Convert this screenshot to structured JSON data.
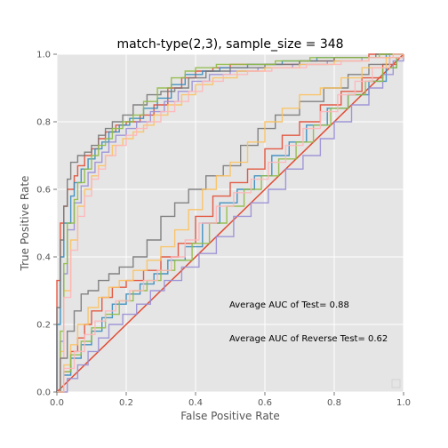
{
  "chart_data": {
    "type": "line",
    "title": "match-type(2,3), sample_size =  348",
    "xlabel": "False Positive Rate",
    "ylabel": "True Positive Rate",
    "xlim": [
      0,
      1
    ],
    "ylim": [
      0,
      1
    ],
    "xticks": [
      "0.0",
      "0.2",
      "0.4",
      "0.6",
      "0.8",
      "1.0"
    ],
    "yticks": [
      "0.0",
      "0.2",
      "0.4",
      "0.6",
      "0.8",
      "1.0"
    ],
    "grid": true,
    "background": "#e5e5e5",
    "annotations": [
      {
        "text": "Average AUC of Test= 0.88",
        "x": 0.5,
        "y": 0.26
      },
      {
        "text": "Average AUC of Reverse Test= 0.62",
        "x": 0.5,
        "y": 0.16
      }
    ],
    "diagonal": {
      "x": [
        0,
        1
      ],
      "y": [
        0,
        1
      ],
      "color": "#e24a33"
    },
    "series": [
      {
        "group": "test",
        "color": "#e24a33",
        "x": [
          0,
          0,
          0.01,
          0.02,
          0.03,
          0.05,
          0.06,
          0.08,
          0.1,
          0.12,
          0.14,
          0.17,
          0.2,
          0.24,
          0.28,
          0.32,
          0.36,
          0.4,
          0.45,
          0.5,
          0.6,
          0.7,
          0.8,
          0.9,
          1
        ],
        "y": [
          0,
          0.33,
          0.5,
          0.55,
          0.6,
          0.64,
          0.67,
          0.7,
          0.72,
          0.75,
          0.77,
          0.79,
          0.8,
          0.82,
          0.85,
          0.9,
          0.93,
          0.95,
          0.96,
          0.97,
          0.97,
          0.98,
          0.99,
          1,
          1
        ]
      },
      {
        "group": "test",
        "color": "#348abd",
        "x": [
          0,
          0,
          0.01,
          0.02,
          0.04,
          0.05,
          0.07,
          0.09,
          0.11,
          0.13,
          0.15,
          0.18,
          0.21,
          0.25,
          0.29,
          0.33,
          0.37,
          0.42,
          0.47,
          0.55,
          0.65,
          0.75,
          0.85,
          0.95,
          1
        ],
        "y": [
          0,
          0.2,
          0.4,
          0.5,
          0.58,
          0.62,
          0.66,
          0.69,
          0.72,
          0.74,
          0.77,
          0.79,
          0.81,
          0.84,
          0.87,
          0.91,
          0.94,
          0.95,
          0.96,
          0.97,
          0.98,
          0.99,
          0.99,
          1,
          1
        ]
      },
      {
        "group": "test",
        "color": "#988ed5",
        "x": [
          0,
          0.01,
          0.02,
          0.03,
          0.05,
          0.07,
          0.09,
          0.11,
          0.13,
          0.15,
          0.17,
          0.2,
          0.23,
          0.27,
          0.31,
          0.35,
          0.39,
          0.44,
          0.5,
          0.58,
          0.68,
          0.78,
          0.88,
          0.96,
          1
        ],
        "y": [
          0,
          0.15,
          0.35,
          0.48,
          0.56,
          0.61,
          0.65,
          0.68,
          0.71,
          0.74,
          0.76,
          0.78,
          0.8,
          0.83,
          0.86,
          0.89,
          0.92,
          0.94,
          0.95,
          0.96,
          0.97,
          0.98,
          0.99,
          1,
          1
        ]
      },
      {
        "group": "test",
        "color": "#777777",
        "x": [
          0,
          0,
          0.01,
          0.02,
          0.03,
          0.04,
          0.06,
          0.08,
          0.1,
          0.12,
          0.14,
          0.16,
          0.19,
          0.22,
          0.26,
          0.3,
          0.34,
          0.38,
          0.43,
          0.5,
          0.6,
          0.7,
          0.8,
          0.92,
          1
        ],
        "y": [
          0,
          0.25,
          0.45,
          0.55,
          0.63,
          0.68,
          0.7,
          0.71,
          0.73,
          0.76,
          0.78,
          0.8,
          0.82,
          0.85,
          0.88,
          0.89,
          0.9,
          0.93,
          0.95,
          0.96,
          0.97,
          0.98,
          0.99,
          1,
          1
        ]
      },
      {
        "group": "test",
        "color": "#fbc15e",
        "x": [
          0,
          0.01,
          0.02,
          0.04,
          0.06,
          0.08,
          0.1,
          0.12,
          0.14,
          0.16,
          0.19,
          0.22,
          0.25,
          0.28,
          0.32,
          0.36,
          0.4,
          0.45,
          0.52,
          0.6,
          0.7,
          0.8,
          0.9,
          0.97,
          1
        ],
        "y": [
          0,
          0.12,
          0.3,
          0.45,
          0.55,
          0.6,
          0.64,
          0.67,
          0.7,
          0.73,
          0.75,
          0.77,
          0.79,
          0.82,
          0.85,
          0.88,
          0.91,
          0.93,
          0.95,
          0.96,
          0.97,
          0.98,
          0.99,
          1,
          1
        ]
      },
      {
        "group": "test",
        "color": "#8eba42",
        "x": [
          0,
          0.01,
          0.02,
          0.03,
          0.05,
          0.06,
          0.08,
          0.1,
          0.12,
          0.14,
          0.16,
          0.19,
          0.22,
          0.25,
          0.29,
          0.33,
          0.37,
          0.4,
          0.46,
          0.53,
          0.63,
          0.73,
          0.83,
          0.93,
          1
        ],
        "y": [
          0,
          0.18,
          0.38,
          0.5,
          0.57,
          0.62,
          0.66,
          0.7,
          0.73,
          0.75,
          0.78,
          0.8,
          0.82,
          0.86,
          0.9,
          0.93,
          0.95,
          0.96,
          0.97,
          0.97,
          0.98,
          0.99,
          0.99,
          1,
          1
        ]
      },
      {
        "group": "test",
        "color": "#ffb5b8",
        "x": [
          0,
          0.01,
          0.02,
          0.04,
          0.06,
          0.08,
          0.1,
          0.12,
          0.14,
          0.17,
          0.2,
          0.23,
          0.26,
          0.3,
          0.34,
          0.38,
          0.42,
          0.48,
          0.55,
          0.62,
          0.72,
          0.82,
          0.9,
          0.97,
          1
        ],
        "y": [
          0,
          0.1,
          0.28,
          0.42,
          0.52,
          0.58,
          0.63,
          0.66,
          0.7,
          0.73,
          0.76,
          0.78,
          0.8,
          0.83,
          0.86,
          0.89,
          0.92,
          0.94,
          0.95,
          0.96,
          0.97,
          0.98,
          0.99,
          1,
          1
        ]
      },
      {
        "group": "reverse",
        "color": "#e24a33",
        "x": [
          0,
          0.02,
          0.04,
          0.06,
          0.08,
          0.1,
          0.13,
          0.16,
          0.2,
          0.25,
          0.3,
          0.35,
          0.4,
          0.45,
          0.5,
          0.55,
          0.6,
          0.65,
          0.7,
          0.76,
          0.82,
          0.88,
          0.94,
          0.98,
          1
        ],
        "y": [
          0,
          0.06,
          0.12,
          0.16,
          0.2,
          0.24,
          0.28,
          0.31,
          0.33,
          0.36,
          0.4,
          0.44,
          0.52,
          0.58,
          0.62,
          0.66,
          0.72,
          0.76,
          0.8,
          0.85,
          0.89,
          0.93,
          0.97,
          0.99,
          1
        ]
      },
      {
        "group": "reverse",
        "color": "#348abd",
        "x": [
          0,
          0.02,
          0.04,
          0.07,
          0.1,
          0.13,
          0.16,
          0.2,
          0.24,
          0.28,
          0.32,
          0.37,
          0.42,
          0.47,
          0.52,
          0.57,
          0.62,
          0.67,
          0.72,
          0.78,
          0.84,
          0.9,
          0.95,
          0.98,
          1
        ],
        "y": [
          0,
          0.05,
          0.1,
          0.14,
          0.18,
          0.22,
          0.26,
          0.29,
          0.32,
          0.35,
          0.39,
          0.43,
          0.5,
          0.56,
          0.6,
          0.64,
          0.7,
          0.74,
          0.79,
          0.84,
          0.88,
          0.92,
          0.96,
          0.99,
          1
        ]
      },
      {
        "group": "reverse",
        "color": "#988ed5",
        "x": [
          0,
          0.03,
          0.06,
          0.09,
          0.12,
          0.15,
          0.19,
          0.23,
          0.27,
          0.31,
          0.36,
          0.41,
          0.46,
          0.51,
          0.56,
          0.61,
          0.66,
          0.71,
          0.76,
          0.8,
          0.85,
          0.9,
          0.94,
          0.97,
          1
        ],
        "y": [
          0,
          0.04,
          0.08,
          0.12,
          0.16,
          0.2,
          0.23,
          0.26,
          0.3,
          0.33,
          0.37,
          0.41,
          0.46,
          0.52,
          0.56,
          0.6,
          0.66,
          0.7,
          0.75,
          0.8,
          0.85,
          0.9,
          0.94,
          0.98,
          1
        ]
      },
      {
        "group": "reverse",
        "color": "#777777",
        "x": [
          0,
          0.01,
          0.03,
          0.05,
          0.07,
          0.09,
          0.12,
          0.15,
          0.18,
          0.22,
          0.26,
          0.3,
          0.34,
          0.38,
          0.43,
          0.48,
          0.53,
          0.58,
          0.63,
          0.7,
          0.77,
          0.84,
          0.9,
          0.96,
          1
        ],
        "y": [
          0,
          0.1,
          0.18,
          0.24,
          0.29,
          0.3,
          0.33,
          0.35,
          0.37,
          0.4,
          0.45,
          0.52,
          0.56,
          0.6,
          0.64,
          0.67,
          0.73,
          0.78,
          0.82,
          0.86,
          0.9,
          0.94,
          0.97,
          0.99,
          1
        ]
      },
      {
        "group": "reverse",
        "color": "#fbc15e",
        "x": [
          0,
          0.02,
          0.04,
          0.06,
          0.09,
          0.12,
          0.15,
          0.18,
          0.22,
          0.26,
          0.3,
          0.34,
          0.38,
          0.42,
          0.46,
          0.5,
          0.55,
          0.6,
          0.65,
          0.7,
          0.76,
          0.82,
          0.88,
          0.95,
          1
        ],
        "y": [
          0,
          0.08,
          0.14,
          0.2,
          0.25,
          0.28,
          0.31,
          0.33,
          0.36,
          0.39,
          0.43,
          0.48,
          0.54,
          0.6,
          0.64,
          0.68,
          0.74,
          0.8,
          0.84,
          0.88,
          0.9,
          0.93,
          0.96,
          0.99,
          1
        ]
      },
      {
        "group": "reverse",
        "color": "#8eba42",
        "x": [
          0,
          0.02,
          0.04,
          0.07,
          0.1,
          0.14,
          0.18,
          0.22,
          0.26,
          0.3,
          0.34,
          0.39,
          0.44,
          0.49,
          0.54,
          0.59,
          0.64,
          0.69,
          0.74,
          0.79,
          0.84,
          0.89,
          0.94,
          0.98,
          1
        ],
        "y": [
          0,
          0.06,
          0.11,
          0.15,
          0.19,
          0.23,
          0.27,
          0.3,
          0.33,
          0.36,
          0.39,
          0.44,
          0.5,
          0.55,
          0.6,
          0.64,
          0.69,
          0.74,
          0.79,
          0.84,
          0.88,
          0.92,
          0.96,
          0.99,
          1
        ]
      },
      {
        "group": "reverse",
        "color": "#ffb5b8",
        "x": [
          0,
          0.02,
          0.05,
          0.08,
          0.11,
          0.14,
          0.17,
          0.21,
          0.25,
          0.29,
          0.33,
          0.37,
          0.41,
          0.46,
          0.51,
          0.56,
          0.61,
          0.66,
          0.71,
          0.76,
          0.81,
          0.86,
          0.91,
          0.96,
          1
        ],
        "y": [
          0,
          0.07,
          0.12,
          0.17,
          0.21,
          0.24,
          0.27,
          0.3,
          0.33,
          0.36,
          0.4,
          0.45,
          0.5,
          0.55,
          0.59,
          0.63,
          0.68,
          0.73,
          0.78,
          0.83,
          0.88,
          0.92,
          0.96,
          0.99,
          1
        ]
      }
    ]
  }
}
